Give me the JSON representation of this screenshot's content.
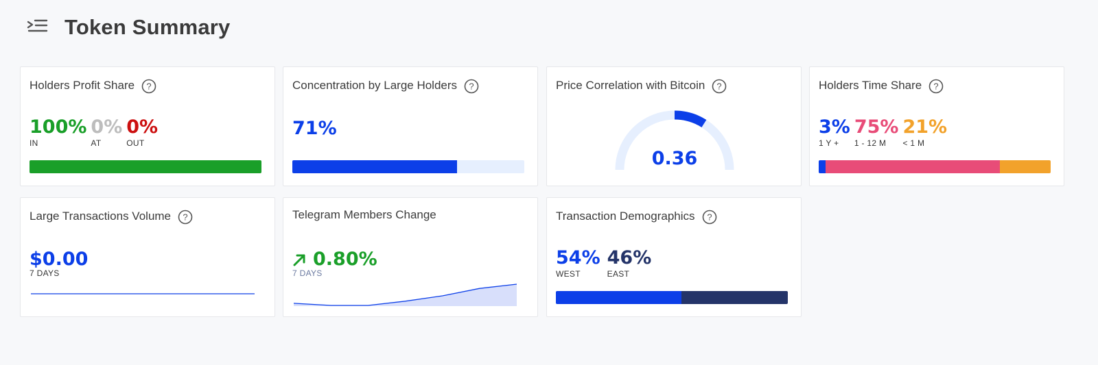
{
  "page": {
    "title": "Token Summary"
  },
  "colors": {
    "green": "#1a9f29",
    "gray": "#bdbdbd",
    "red": "#cc1010",
    "blue": "#0c3fe8",
    "lightblue": "#e6effe",
    "pink": "#e84c78",
    "orange": "#f2a22b",
    "navy": "#243469"
  },
  "cards": {
    "profit": {
      "title": "Holders Profit Share",
      "stats": [
        {
          "value": "100%",
          "label": "IN",
          "share": 100
        },
        {
          "value": "0%",
          "label": "AT",
          "share": 0
        },
        {
          "value": "0%",
          "label": "OUT",
          "share": 0
        }
      ]
    },
    "concentration": {
      "title": "Concentration by Large Holders",
      "value": "71%",
      "share": 71
    },
    "correlation": {
      "title": "Price Correlation with Bitcoin",
      "value": "0.36",
      "correlation": 0.36
    },
    "timeshare": {
      "title": "Holders Time Share",
      "stats": [
        {
          "value": "3%",
          "label": "1 Y +",
          "share": 3
        },
        {
          "value": "75%",
          "label": "1 - 12 M",
          "share": 75
        },
        {
          "value": "21%",
          "label": "< 1 M",
          "share": 21
        }
      ]
    },
    "volume": {
      "title": "Large Transactions Volume",
      "value": "$0.00",
      "period": "7 DAYS"
    },
    "telegram": {
      "title": "Telegram Members Change",
      "value": "0.80%",
      "period": "7 DAYS",
      "trend_icon": "arrow-up-right-icon"
    },
    "demographics": {
      "title": "Transaction Demographics",
      "stats": [
        {
          "value": "54%",
          "label": "WEST",
          "share": 54
        },
        {
          "value": "46%",
          "label": "EAST",
          "share": 46
        }
      ]
    }
  },
  "chart_data": [
    {
      "type": "line",
      "x": [
        1,
        2,
        3,
        4,
        5,
        6,
        7
      ],
      "values": [
        0,
        0,
        0,
        0,
        0,
        0,
        0
      ]
    },
    {
      "type": "area",
      "x": [
        1,
        2,
        3,
        4,
        5,
        6,
        7
      ],
      "values": [
        0.1,
        0.0,
        0.0,
        0.2,
        0.45,
        0.8,
        1.0
      ]
    }
  ]
}
